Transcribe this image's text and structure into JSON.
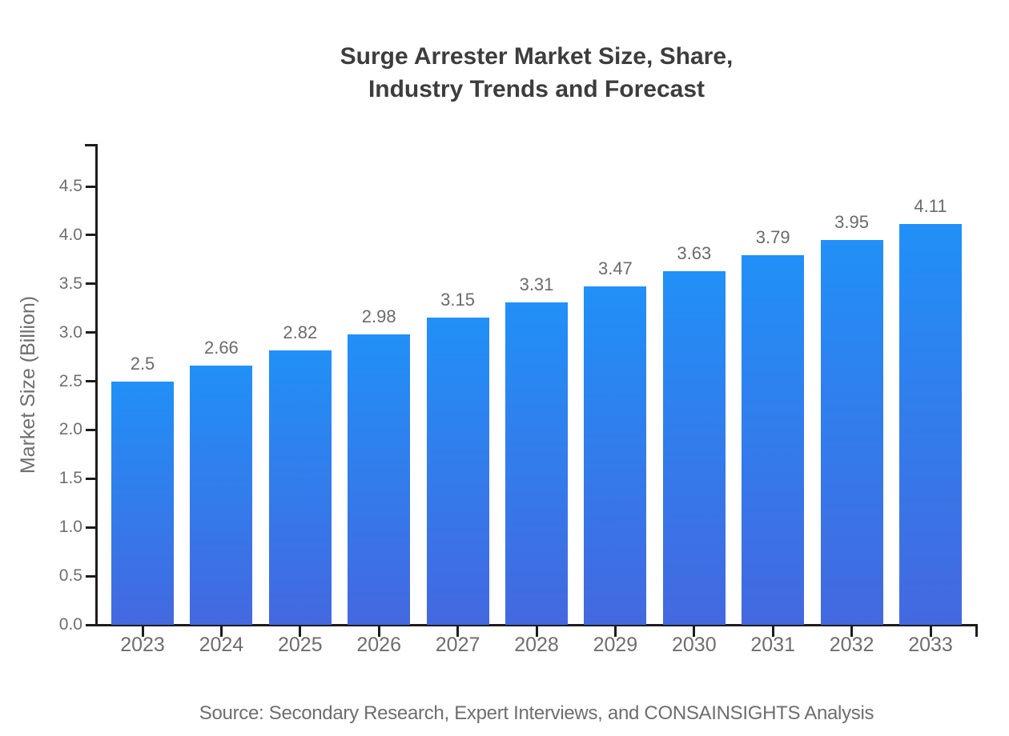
{
  "title": {
    "line1": "Surge Arrester Market Size, Share,",
    "line2": "Industry Trends and Forecast"
  },
  "source": "Source: Secondary Research, Expert Interviews, and CONSAINSIGHTS Analysis",
  "chart_data": {
    "type": "bar",
    "title": "Surge Arrester Market Size, Share, Industry Trends and Forecast",
    "categories": [
      "2023",
      "2024",
      "2025",
      "2026",
      "2027",
      "2028",
      "2029",
      "2030",
      "2031",
      "2032",
      "2033"
    ],
    "values": [
      2.5,
      2.66,
      2.82,
      2.98,
      3.15,
      3.31,
      3.47,
      3.63,
      3.79,
      3.95,
      4.11
    ],
    "value_labels": [
      "2.5",
      "2.66",
      "2.82",
      "2.98",
      "3.15",
      "3.31",
      "3.47",
      "3.63",
      "3.79",
      "3.95",
      "4.11"
    ],
    "xlabel": "",
    "ylabel": "Market Size (Billion)",
    "ylim": [
      0,
      4.935
    ],
    "yticks": [
      0.0,
      0.5,
      1.0,
      1.5,
      2.0,
      2.5,
      3.0,
      3.5,
      4.0,
      4.5
    ],
    "ytick_labels": [
      "0.0",
      "0.5",
      "1.0",
      "1.5",
      "2.0",
      "2.5",
      "3.0",
      "3.5",
      "4.0",
      "4.5"
    ],
    "grid": false,
    "legend": "none",
    "colors": {
      "bar_gradient_top": "#2190f7",
      "bar_gradient_bottom": "#4468e0",
      "axis": "#1c1c1c",
      "tick_labels": "#6e6e6e",
      "value_labels": "#6b6b6b",
      "title": "#3d3d3d"
    }
  }
}
